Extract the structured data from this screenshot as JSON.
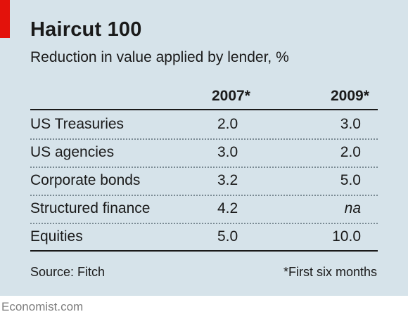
{
  "title": "Haircut 100",
  "subtitle": "Reduction in value applied by lender, %",
  "columns": [
    "2007*",
    "2009*"
  ],
  "rows": [
    {
      "label": "US Treasuries",
      "v2007": "2.0",
      "v2009": "3.0"
    },
    {
      "label": "US agencies",
      "v2007": "3.0",
      "v2009": "2.0"
    },
    {
      "label": "Corporate bonds",
      "v2007": "3.2",
      "v2009": "5.0"
    },
    {
      "label": "Structured finance",
      "v2007": "4.2",
      "v2009": "na"
    },
    {
      "label": "Equities",
      "v2007": "5.0",
      "v2009": "10.0"
    }
  ],
  "source": "Source: Fitch",
  "footnote": "*First six months",
  "brand": "Economist.com",
  "colors": {
    "background_panel": "#d6e3ea",
    "accent_red": "#e3120b",
    "text": "#1a1a1a"
  },
  "chart_data": {
    "type": "table",
    "title": "Haircut 100",
    "subtitle": "Reduction in value applied by lender, %",
    "columns": [
      "2007*",
      "2009*"
    ],
    "rows": [
      "US Treasuries",
      "US agencies",
      "Corporate bonds",
      "Structured finance",
      "Equities"
    ],
    "values": [
      [
        2.0,
        3.0
      ],
      [
        3.0,
        2.0
      ],
      [
        3.2,
        5.0
      ],
      [
        4.2,
        "na"
      ],
      [
        5.0,
        10.0
      ]
    ],
    "source": "Source: Fitch",
    "footnote": "*First six months"
  }
}
